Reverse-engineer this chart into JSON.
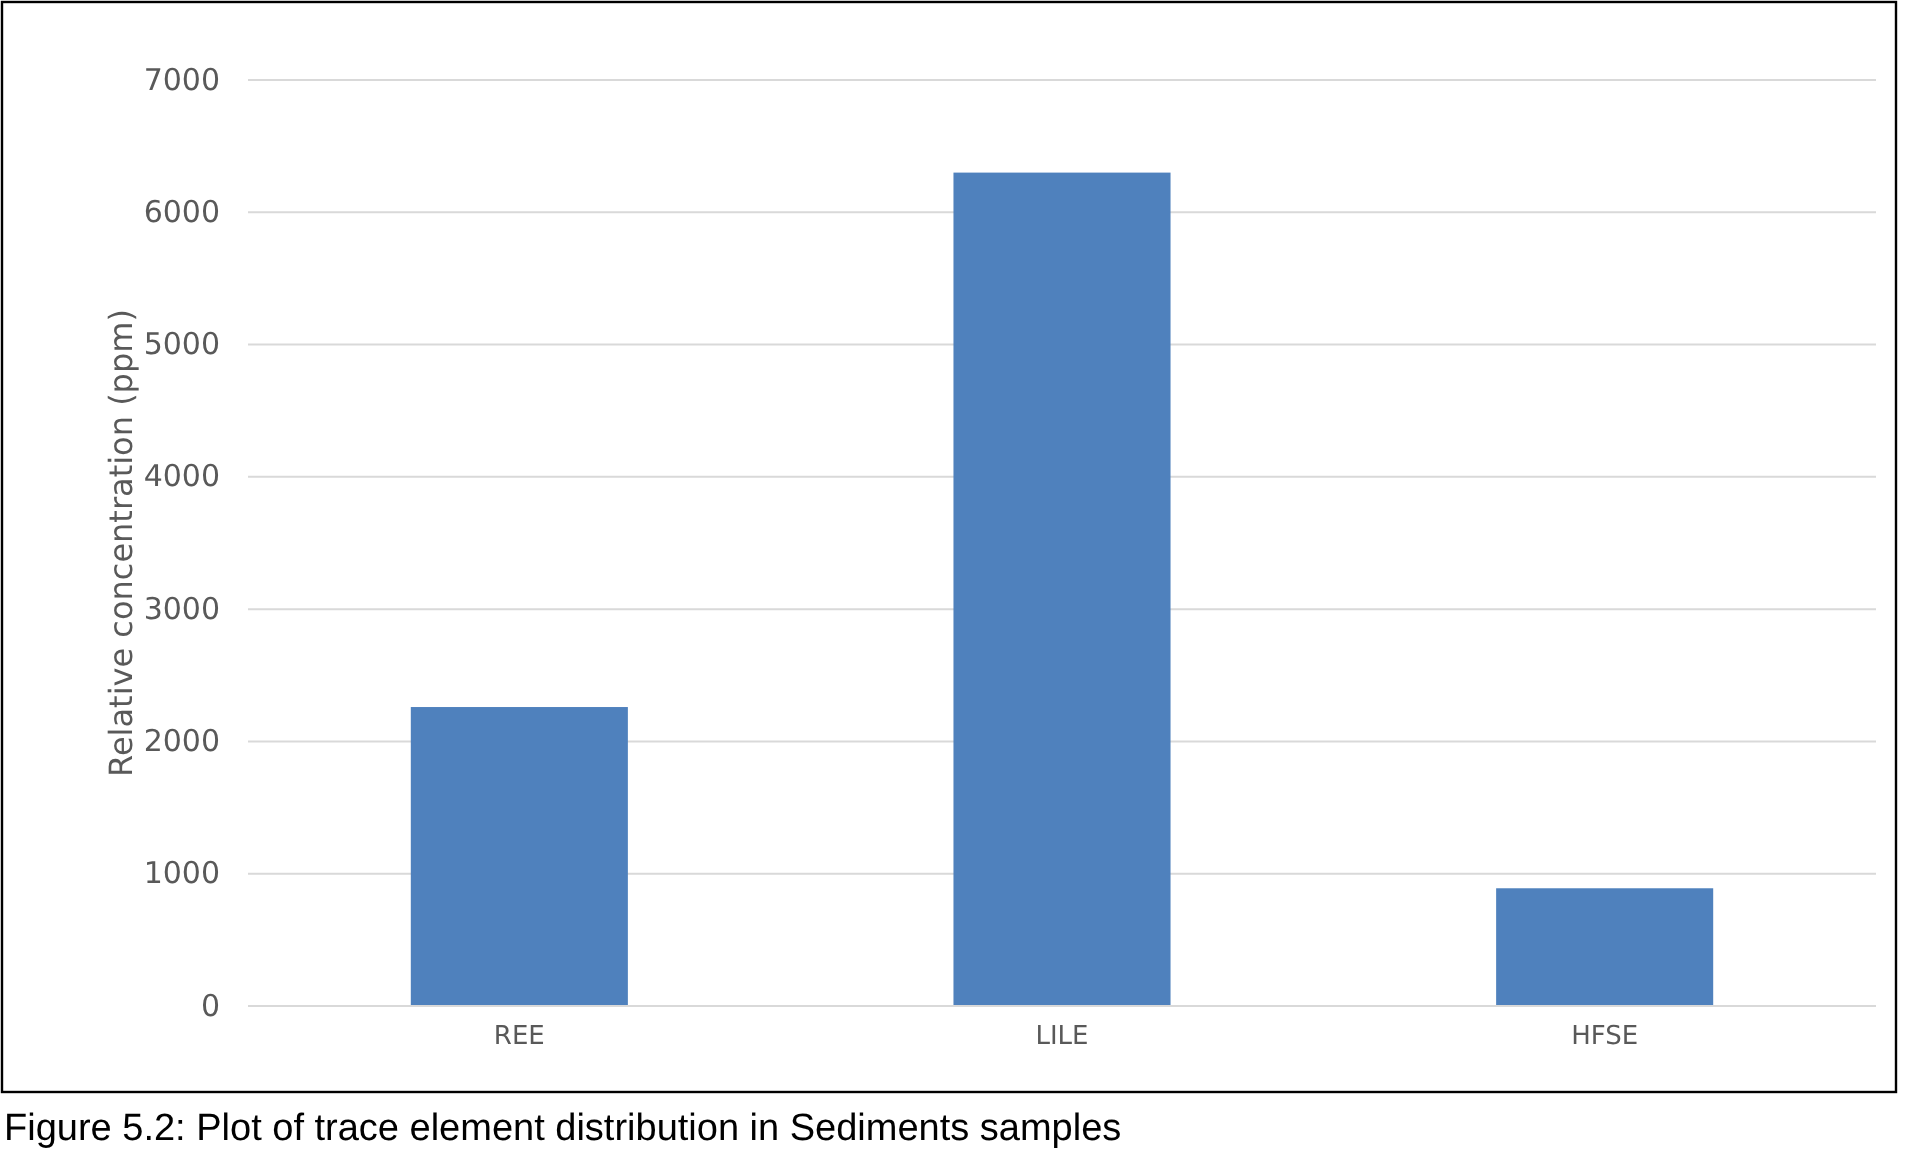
{
  "chart_data": {
    "type": "bar",
    "ylabel": "Relative concentration (ppm)",
    "categories": [
      "REE",
      "LILE",
      "HFSE"
    ],
    "values": [
      2260,
      6300,
      890
    ],
    "color": "#4f81bd",
    "ylim": [
      0,
      7000
    ],
    "yticks": [
      0,
      1000,
      2000,
      3000,
      4000,
      5000,
      6000,
      7000
    ],
    "grid": "y",
    "annotations": [
      "Figure 5.2: Plot of trace element distribution in Sediments samples"
    ]
  }
}
